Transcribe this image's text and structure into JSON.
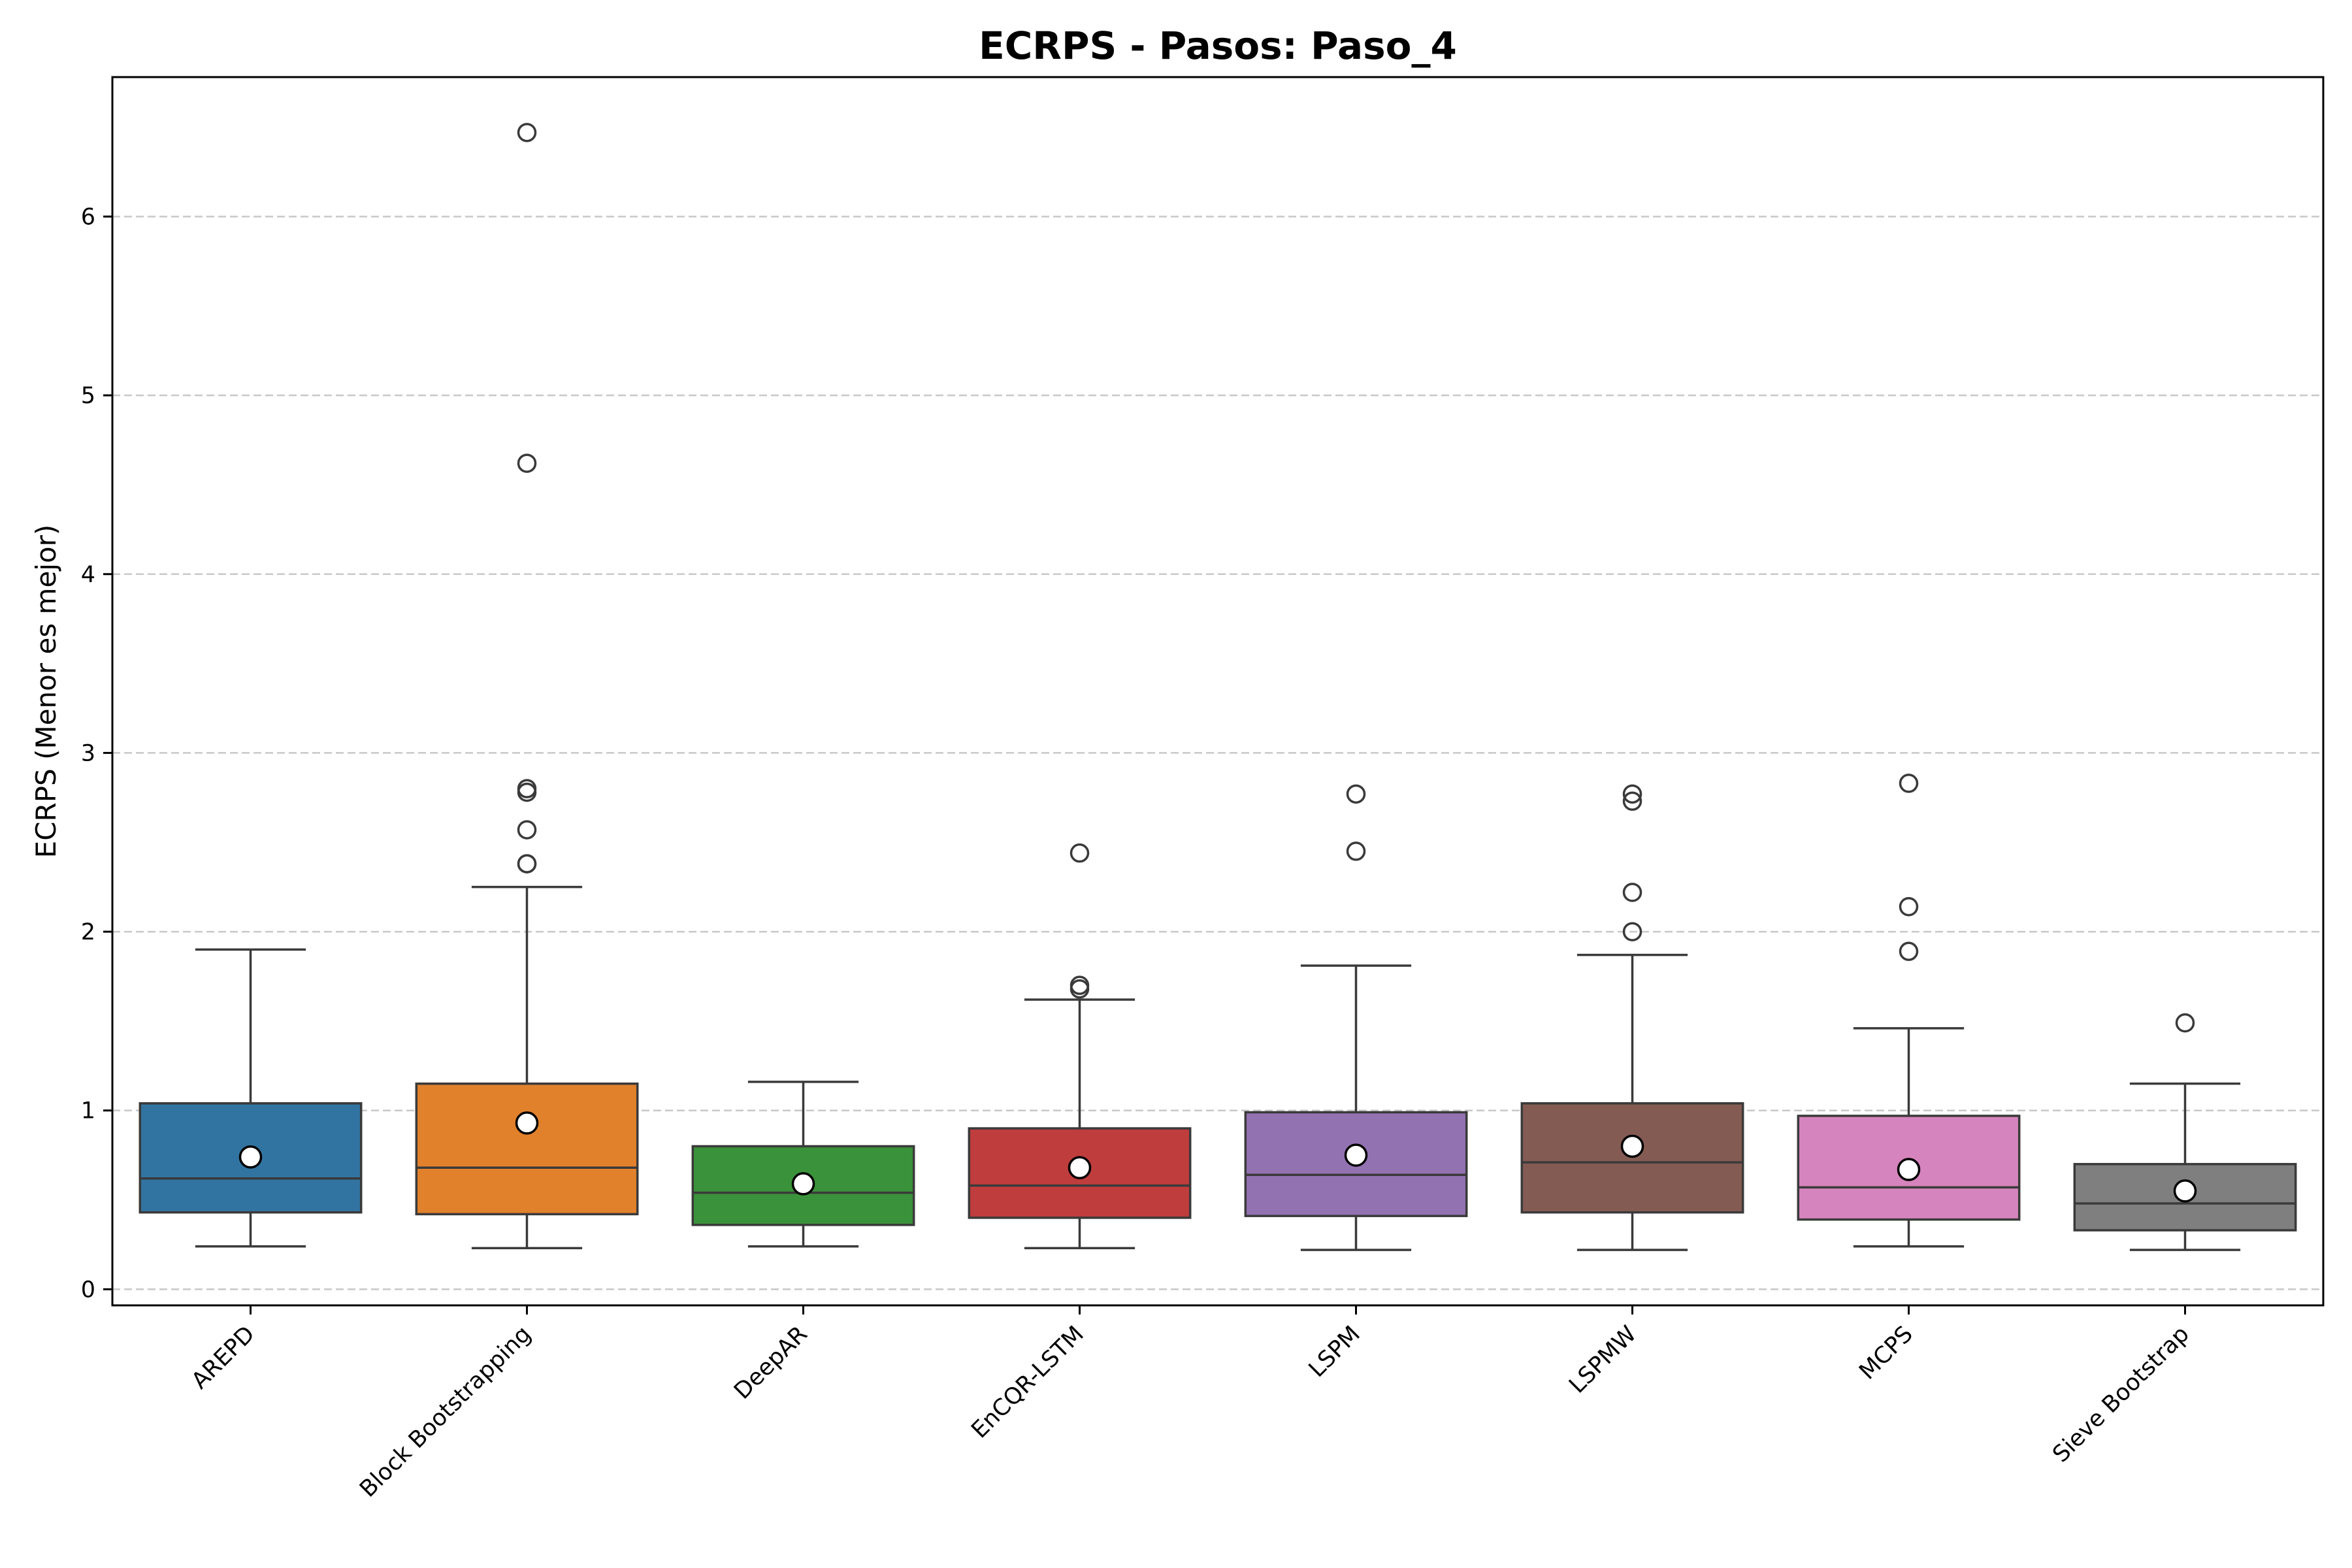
{
  "chart_data": {
    "type": "box",
    "title": "ECRPS - Pasos: Paso_4",
    "xlabel": "",
    "ylabel": "ECRPS (Menor es mejor)",
    "ylim": [
      -0.09,
      6.78
    ],
    "yticks": [
      0,
      1,
      2,
      3,
      4,
      5,
      6
    ],
    "grid": "y-dashed",
    "categories": [
      "AREPD",
      "Block Bootstrapping",
      "DeepAR",
      "EnCQR-LSTM",
      "LSPM",
      "LSPMW",
      "MCPS",
      "Sieve Bootstrap"
    ],
    "colors": [
      "#3274a1",
      "#e1812c",
      "#3a923a",
      "#c03d3e",
      "#9372b2",
      "#845b53",
      "#d684bd",
      "#7f7f7f"
    ],
    "boxes": [
      {
        "whislo": 0.24,
        "q1": 0.43,
        "median": 0.62,
        "q3": 1.04,
        "whishi": 1.9,
        "mean": 0.74,
        "fliers": []
      },
      {
        "whislo": 0.23,
        "q1": 0.42,
        "median": 0.68,
        "q3": 1.15,
        "whishi": 2.25,
        "mean": 0.93,
        "fliers": [
          6.47,
          4.62,
          2.8,
          2.78,
          2.57,
          2.38,
          2.38
        ]
      },
      {
        "whislo": 0.24,
        "q1": 0.36,
        "median": 0.54,
        "q3": 0.8,
        "whishi": 1.16,
        "mean": 0.59,
        "fliers": []
      },
      {
        "whislo": 0.23,
        "q1": 0.4,
        "median": 0.58,
        "q3": 0.9,
        "whishi": 1.62,
        "mean": 0.68,
        "fliers": [
          2.44,
          1.7,
          1.68
        ]
      },
      {
        "whislo": 0.22,
        "q1": 0.41,
        "median": 0.64,
        "q3": 0.99,
        "whishi": 1.81,
        "mean": 0.75,
        "fliers": [
          2.77,
          2.45
        ]
      },
      {
        "whislo": 0.22,
        "q1": 0.43,
        "median": 0.71,
        "q3": 1.04,
        "whishi": 1.87,
        "mean": 0.8,
        "fliers": [
          2.77,
          2.73,
          2.22,
          2.0
        ]
      },
      {
        "whislo": 0.24,
        "q1": 0.39,
        "median": 0.57,
        "q3": 0.97,
        "whishi": 1.46,
        "mean": 0.67,
        "fliers": [
          2.83,
          2.14,
          1.89
        ]
      },
      {
        "whislo": 0.22,
        "q1": 0.33,
        "median": 0.48,
        "q3": 0.7,
        "whishi": 1.15,
        "mean": 0.55,
        "fliers": [
          1.49
        ]
      }
    ]
  }
}
